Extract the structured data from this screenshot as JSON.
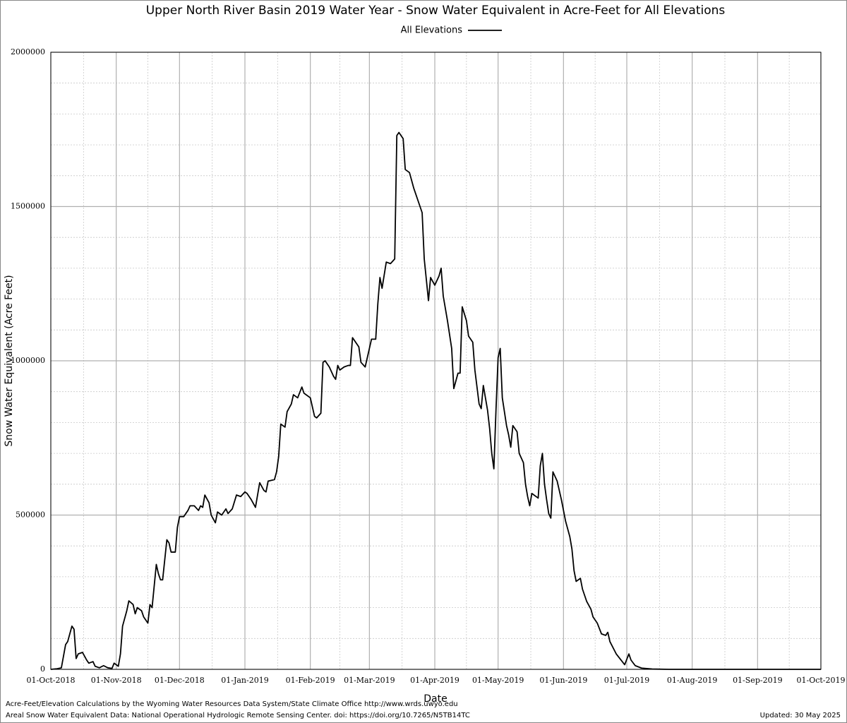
{
  "chart_data": {
    "type": "line",
    "title": "Upper North River Basin 2019 Water Year - Snow Water Equivalent in Acre-Feet for All Elevations",
    "x_label": "Date",
    "y_label": "Snow Water Equivalent (Acre Feet)",
    "notes": [
      "Acre-Feet/Elevation Calculations by the Wyoming Water Resources Data System/State Climate Office http://www.wrds.uwyo.edu",
      "Areal Snow Water Equivalent Data: National Operational Hydrologic Remote Sensing Center. doi: https://doi.org/10.7265/N5TB14TC"
    ],
    "updated": "Updated: 30 May 2025",
    "legend": "top",
    "grid": true,
    "minor_grid": true,
    "xlim": [
      "2018-10-01",
      "2019-10-01"
    ],
    "ylim": [
      0,
      2000000
    ],
    "yticks": [
      0,
      500000,
      1000000,
      1500000,
      2000000
    ],
    "xticks": [
      {
        "value": "2018-10-01",
        "label": "01-Oct-2018"
      },
      {
        "value": "2018-11-01",
        "label": "01-Nov-2018"
      },
      {
        "value": "2018-12-01",
        "label": "01-Dec-2018"
      },
      {
        "value": "2019-01-01",
        "label": "01-Jan-2019"
      },
      {
        "value": "2019-02-01",
        "label": "01-Feb-2019"
      },
      {
        "value": "2019-03-01",
        "label": "01-Mar-2019"
      },
      {
        "value": "2019-04-01",
        "label": "01-Apr-2019"
      },
      {
        "value": "2019-05-01",
        "label": "01-May-2019"
      },
      {
        "value": "2019-06-01",
        "label": "01-Jun-2019"
      },
      {
        "value": "2019-07-01",
        "label": "01-Jul-2019"
      },
      {
        "value": "2019-08-01",
        "label": "01-Aug-2019"
      },
      {
        "value": "2019-09-01",
        "label": "01-Sep-2019"
      },
      {
        "value": "2019-10-01",
        "label": "01-Oct-2019"
      }
    ],
    "x": [
      "2018-10-01",
      "2018-10-04",
      "2018-10-06",
      "2018-10-08",
      "2018-10-09",
      "2018-10-11",
      "2018-10-12",
      "2018-10-13",
      "2018-10-14",
      "2018-10-16",
      "2018-10-18",
      "2018-10-19",
      "2018-10-21",
      "2018-10-22",
      "2018-10-24",
      "2018-10-26",
      "2018-10-28",
      "2018-10-30",
      "2018-10-31",
      "2018-11-02",
      "2018-11-03",
      "2018-11-04",
      "2018-11-06",
      "2018-11-07",
      "2018-11-09",
      "2018-11-10",
      "2018-11-11",
      "2018-11-13",
      "2018-11-14",
      "2018-11-16",
      "2018-11-17",
      "2018-11-18",
      "2018-11-20",
      "2018-11-21",
      "2018-11-22",
      "2018-11-23",
      "2018-11-25",
      "2018-11-26",
      "2018-11-27",
      "2018-11-29",
      "2018-11-30",
      "2018-12-01",
      "2018-12-03",
      "2018-12-05",
      "2018-12-06",
      "2018-12-08",
      "2018-12-10",
      "2018-12-11",
      "2018-12-12",
      "2018-12-13",
      "2018-12-15",
      "2018-12-16",
      "2018-12-18",
      "2018-12-19",
      "2018-12-21",
      "2018-12-23",
      "2018-12-24",
      "2018-12-26",
      "2018-12-28",
      "2018-12-30",
      "2019-01-01",
      "2019-01-02",
      "2019-01-04",
      "2019-01-06",
      "2019-01-08",
      "2019-01-10",
      "2019-01-11",
      "2019-01-12",
      "2019-01-15",
      "2019-01-16",
      "2019-01-17",
      "2019-01-18",
      "2019-01-20",
      "2019-01-21",
      "2019-01-23",
      "2019-01-24",
      "2019-01-26",
      "2019-01-28",
      "2019-01-29",
      "2019-02-01",
      "2019-02-03",
      "2019-02-04",
      "2019-02-06",
      "2019-02-07",
      "2019-02-08",
      "2019-02-10",
      "2019-02-12",
      "2019-02-13",
      "2019-02-14",
      "2019-02-15",
      "2019-02-17",
      "2019-02-19",
      "2019-02-20",
      "2019-02-21",
      "2019-02-24",
      "2019-02-25",
      "2019-02-27",
      "2019-03-02",
      "2019-03-04",
      "2019-03-05",
      "2019-03-06",
      "2019-03-07",
      "2019-03-09",
      "2019-03-11",
      "2019-03-13",
      "2019-03-14",
      "2019-03-15",
      "2019-03-17",
      "2019-03-18",
      "2019-03-20",
      "2019-03-22",
      "2019-03-24",
      "2019-03-26",
      "2019-03-27",
      "2019-03-29",
      "2019-03-30",
      "2019-04-01",
      "2019-04-03",
      "2019-04-04",
      "2019-04-05",
      "2019-04-07",
      "2019-04-09",
      "2019-04-10",
      "2019-04-12",
      "2019-04-13",
      "2019-04-14",
      "2019-04-16",
      "2019-04-17",
      "2019-04-19",
      "2019-04-20",
      "2019-04-22",
      "2019-04-23",
      "2019-04-24",
      "2019-04-26",
      "2019-04-27",
      "2019-04-28",
      "2019-04-29",
      "2019-04-30",
      "2019-05-01",
      "2019-05-02",
      "2019-05-03",
      "2019-05-05",
      "2019-05-06",
      "2019-05-07",
      "2019-05-08",
      "2019-05-10",
      "2019-05-11",
      "2019-05-13",
      "2019-05-14",
      "2019-05-15",
      "2019-05-16",
      "2019-05-17",
      "2019-05-20",
      "2019-05-21",
      "2019-05-22",
      "2019-05-23",
      "2019-05-24",
      "2019-05-25",
      "2019-05-26",
      "2019-05-27",
      "2019-05-29",
      "2019-05-31",
      "2019-06-02",
      "2019-06-04",
      "2019-06-05",
      "2019-06-06",
      "2019-06-07",
      "2019-06-09",
      "2019-06-10",
      "2019-06-12",
      "2019-06-14",
      "2019-06-15",
      "2019-06-17",
      "2019-06-19",
      "2019-06-21",
      "2019-06-22",
      "2019-06-23",
      "2019-06-26",
      "2019-06-30",
      "2019-07-02",
      "2019-07-03",
      "2019-07-05",
      "2019-07-08",
      "2019-07-13",
      "2019-07-21",
      "2019-10-01"
    ],
    "series": [
      {
        "name": "All Elevations",
        "color": "#000000",
        "values": [
          0,
          2000,
          5000,
          80000,
          90000,
          140000,
          130000,
          35000,
          50000,
          55000,
          30000,
          20000,
          25000,
          10000,
          5000,
          12000,
          5000,
          3000,
          20000,
          10000,
          50000,
          140000,
          190000,
          222000,
          210000,
          180000,
          200000,
          190000,
          170000,
          150000,
          210000,
          200000,
          340000,
          310000,
          290000,
          290000,
          420000,
          410000,
          380000,
          380000,
          460000,
          495000,
          495000,
          515000,
          530000,
          530000,
          515000,
          530000,
          525000,
          565000,
          540000,
          500000,
          475000,
          510000,
          500000,
          520000,
          505000,
          520000,
          565000,
          560000,
          575000,
          570000,
          550000,
          525000,
          605000,
          580000,
          575000,
          610000,
          615000,
          640000,
          690000,
          795000,
          785000,
          835000,
          860000,
          890000,
          880000,
          915000,
          895000,
          880000,
          820000,
          815000,
          830000,
          995000,
          1000000,
          980000,
          950000,
          940000,
          985000,
          970000,
          980000,
          985000,
          985000,
          1075000,
          1045000,
          995000,
          980000,
          1070000,
          1070000,
          1185000,
          1270000,
          1235000,
          1320000,
          1315000,
          1330000,
          1730000,
          1740000,
          1720000,
          1620000,
          1610000,
          1560000,
          1520000,
          1480000,
          1330000,
          1195000,
          1270000,
          1245000,
          1275000,
          1300000,
          1210000,
          1130000,
          1040000,
          910000,
          960000,
          960000,
          1175000,
          1130000,
          1080000,
          1060000,
          970000,
          860000,
          845000,
          920000,
          840000,
          780000,
          700000,
          650000,
          840000,
          1010000,
          1040000,
          880000,
          790000,
          760000,
          720000,
          790000,
          770000,
          700000,
          670000,
          600000,
          560000,
          530000,
          570000,
          555000,
          660000,
          700000,
          600000,
          550000,
          505000,
          490000,
          640000,
          610000,
          550000,
          480000,
          430000,
          390000,
          320000,
          285000,
          295000,
          260000,
          220000,
          195000,
          170000,
          150000,
          115000,
          110000,
          120000,
          90000,
          50000,
          15000,
          50000,
          30000,
          12000,
          4000,
          1000,
          0,
          0
        ]
      }
    ]
  }
}
